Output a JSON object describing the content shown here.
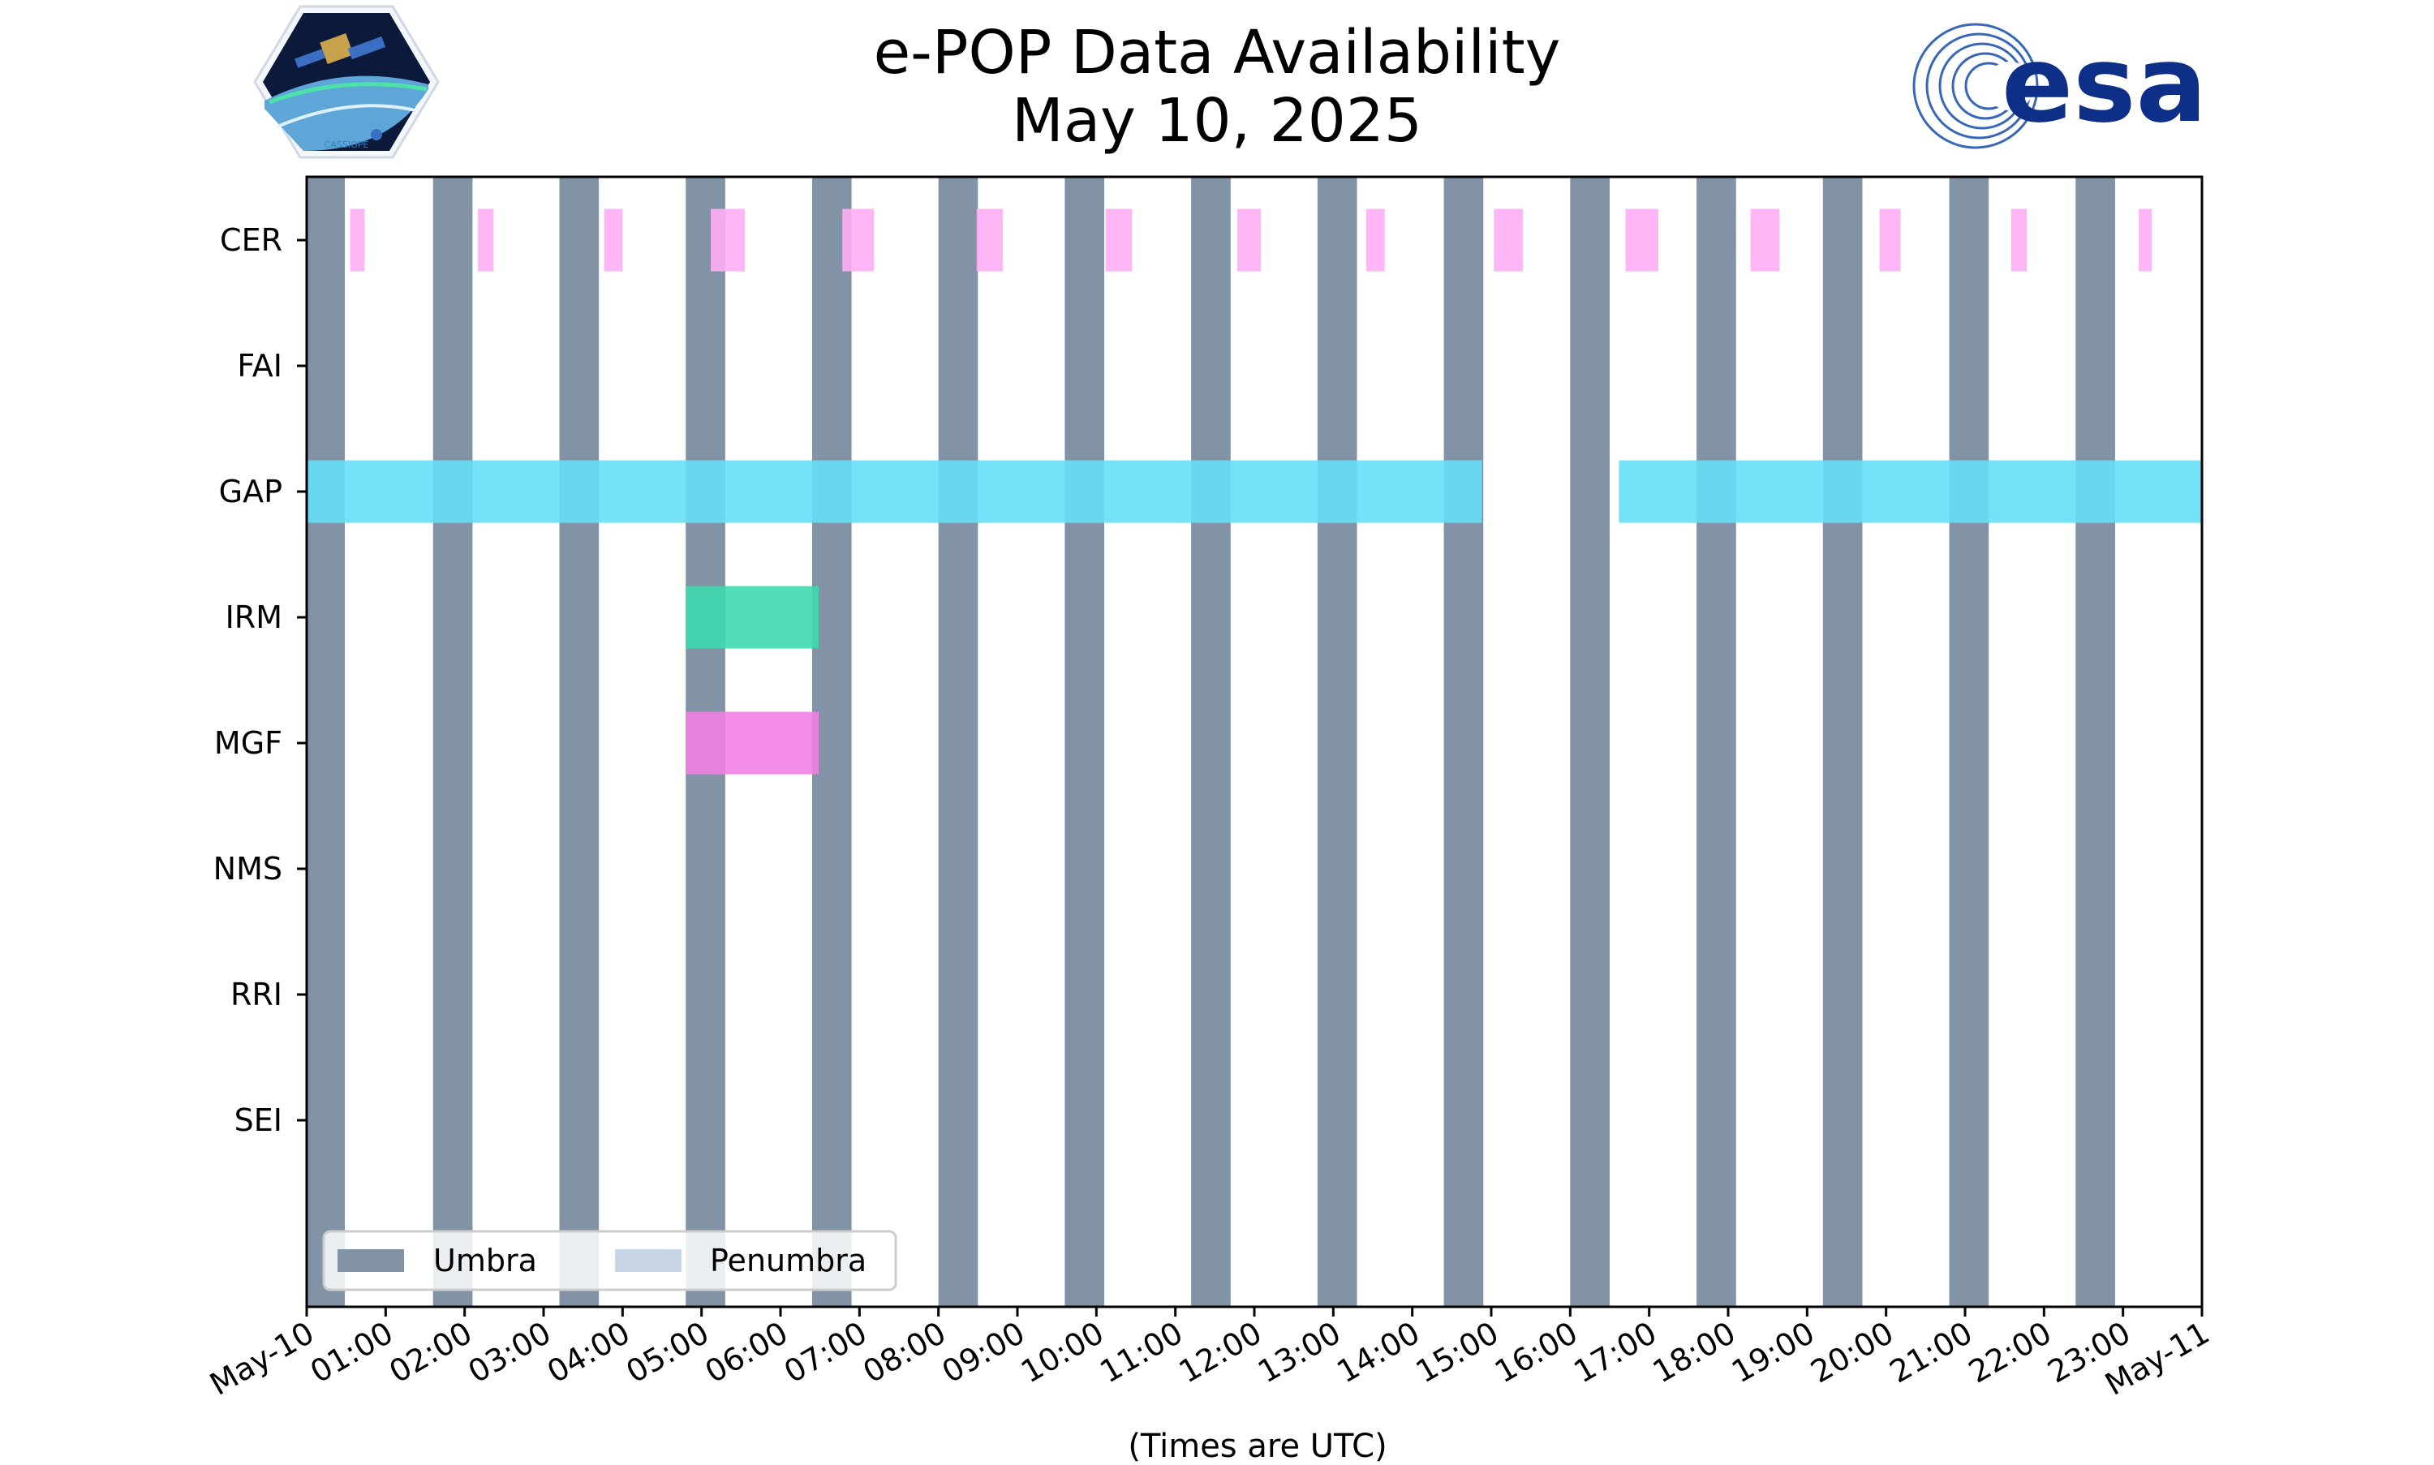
{
  "title": "e-POP Data Availability",
  "subtitle": "May 10, 2025",
  "logos": {
    "left": "cassiope-mission-logo",
    "left_text": "CASSIOPE",
    "right": "esa-logo",
    "right_text": "esa"
  },
  "colors": {
    "umbra": "#8293a6",
    "penumbra": "#c9d6e6",
    "CER": "#feaef5",
    "GAP": "#66dff7",
    "IRM": "#3dd9b0",
    "MGF": "#f27fe4",
    "axis": "#000000"
  },
  "chart_data": {
    "type": "timeline",
    "title": "e-POP Data Availability",
    "subtitle": "May 10, 2025",
    "xlabel": "(Times are UTC)",
    "xlim": [
      "2025-05-10 00:00",
      "2025-05-11 00:00"
    ],
    "x_ticks": [
      "May-10",
      "01:00",
      "02:00",
      "03:00",
      "04:00",
      "05:00",
      "06:00",
      "07:00",
      "08:00",
      "09:00",
      "10:00",
      "11:00",
      "12:00",
      "13:00",
      "14:00",
      "15:00",
      "16:00",
      "17:00",
      "18:00",
      "19:00",
      "20:00",
      "21:00",
      "22:00",
      "23:00",
      "May-11"
    ],
    "y_categories": [
      "CER",
      "FAI",
      "GAP",
      "IRM",
      "MGF",
      "NMS",
      "RRI",
      "SEI"
    ],
    "umbra_intervals": [
      [
        "00:00",
        "00:29"
      ],
      [
        "01:36",
        "02:06"
      ],
      [
        "03:12",
        "03:42"
      ],
      [
        "04:48",
        "05:18"
      ],
      [
        "06:24",
        "06:54"
      ],
      [
        "08:00",
        "08:30"
      ],
      [
        "09:36",
        "10:06"
      ],
      [
        "11:12",
        "11:42"
      ],
      [
        "12:48",
        "13:18"
      ],
      [
        "14:24",
        "14:54"
      ],
      [
        "16:00",
        "16:30"
      ],
      [
        "17:36",
        "18:06"
      ],
      [
        "19:12",
        "19:42"
      ],
      [
        "20:48",
        "21:18"
      ],
      [
        "22:24",
        "22:54"
      ]
    ],
    "penumbra_intervals": [],
    "series": [
      {
        "name": "CER",
        "intervals": [
          [
            "00:33",
            "00:44"
          ],
          [
            "02:10",
            "02:22"
          ],
          [
            "03:46",
            "04:00"
          ],
          [
            "05:07",
            "05:33"
          ],
          [
            "06:47",
            "07:11"
          ],
          [
            "08:29",
            "08:49"
          ],
          [
            "10:07",
            "10:27"
          ],
          [
            "11:47",
            "12:05"
          ],
          [
            "13:25",
            "13:39"
          ],
          [
            "15:02",
            "15:24"
          ],
          [
            "16:42",
            "17:07"
          ],
          [
            "18:17",
            "18:39"
          ],
          [
            "19:55",
            "20:11"
          ],
          [
            "21:35",
            "21:47"
          ],
          [
            "23:12",
            "23:22"
          ]
        ]
      },
      {
        "name": "FAI",
        "intervals": []
      },
      {
        "name": "GAP",
        "intervals": [
          [
            "00:00",
            "14:53"
          ],
          [
            "16:37",
            "24:00"
          ]
        ]
      },
      {
        "name": "IRM",
        "intervals": [
          [
            "04:48",
            "06:29"
          ]
        ]
      },
      {
        "name": "MGF",
        "intervals": [
          [
            "04:48",
            "06:29"
          ]
        ]
      },
      {
        "name": "NMS",
        "intervals": []
      },
      {
        "name": "RRI",
        "intervals": []
      },
      {
        "name": "SEI",
        "intervals": []
      }
    ],
    "legend": {
      "position": "lower-left",
      "entries": [
        "Umbra",
        "Penumbra"
      ]
    },
    "grid": false
  }
}
